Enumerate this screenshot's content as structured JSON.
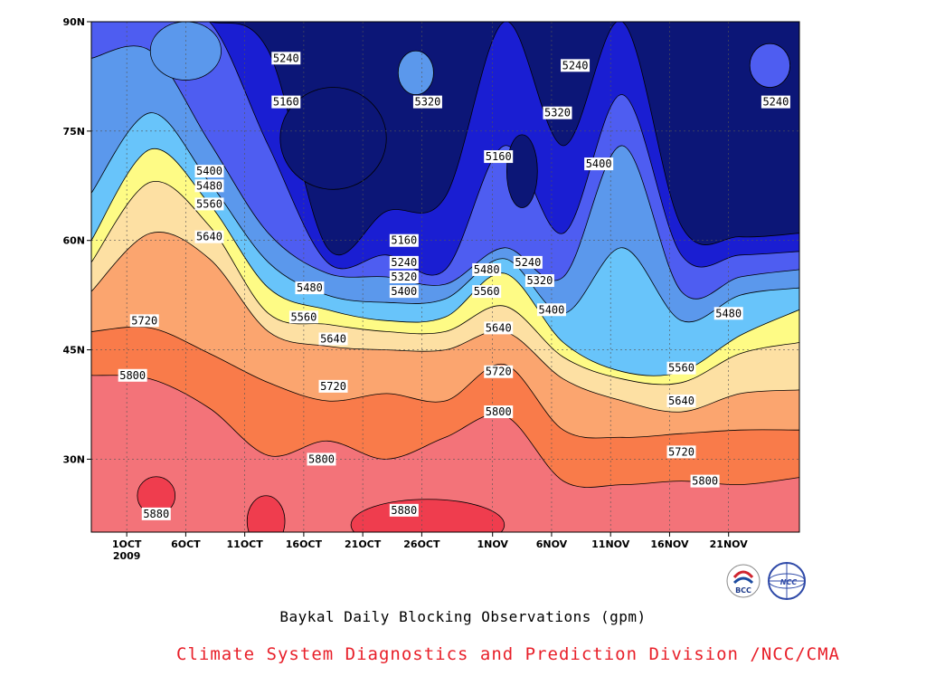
{
  "chart_data": {
    "type": "heatmap",
    "subtitle": "Baykal Daily Blocking Observations (gpm)",
    "credit": "Climate System Diagnostics and Prediction Division /NCC/CMA",
    "x_ticks": [
      "1OCT\n2009",
      "6OCT",
      "11OCT",
      "16OCT",
      "21OCT",
      "26OCT",
      "1NOV",
      "6NOV",
      "11NOV",
      "16NOV",
      "21NOV"
    ],
    "y_ticks": [
      "90N",
      "75N",
      "60N",
      "45N",
      "30N"
    ],
    "x_range_days_oct": [
      -2,
      58
    ],
    "y_range_lat": [
      20,
      90
    ],
    "grid": true,
    "contour_levels": [
      5160,
      5240,
      5320,
      5400,
      5480,
      5560,
      5640,
      5720,
      5800,
      5880
    ],
    "fill_colors": {
      "below_5160": "#0c1677",
      "5160_5240": "#1a1ed2",
      "5240_5320": "#4e5df1",
      "5320_5400": "#5b98ec",
      "5400_5480": "#68c4fa",
      "5480_5560": "#fefb85",
      "5560_5640": "#fde0a3",
      "5640_5720": "#fba56f",
      "5720_5800": "#f97b4a",
      "5800_5880": "#f37379",
      "above_5880": "#ef3d4e"
    },
    "boundary_lats": {
      "5880": [
        20.0,
        20.0,
        20.0,
        20.0,
        20.0,
        20.0,
        20.0,
        20.0,
        20.0,
        20.0,
        20.0,
        20.0,
        20.0
      ],
      "5800": [
        41.5,
        41.0,
        37.0,
        30.5,
        32.5,
        30.0,
        33.0,
        36.0,
        27.0,
        26.5,
        27.0,
        26.5,
        27.5
      ],
      "5720": [
        47.5,
        48.0,
        44.5,
        40.5,
        38.0,
        39.0,
        38.0,
        43.0,
        34.0,
        33.0,
        33.5,
        34.0,
        34.0
      ],
      "5640": [
        53.0,
        61.0,
        57.5,
        47.5,
        45.5,
        45.0,
        45.0,
        47.5,
        41.0,
        38.0,
        36.5,
        39.0,
        39.5
      ],
      "5560": [
        57.0,
        68.0,
        62.0,
        50.0,
        48.5,
        47.5,
        47.5,
        51.0,
        44.0,
        41.0,
        40.5,
        44.5,
        46.0
      ],
      "5480": [
        60.0,
        72.5,
        65.0,
        53.5,
        50.5,
        49.0,
        49.5,
        55.5,
        46.0,
        42.0,
        42.0,
        47.0,
        50.5
      ],
      "5400": [
        66.5,
        77.5,
        68.0,
        57.0,
        52.5,
        51.5,
        52.0,
        57.5,
        50.0,
        59.0,
        49.0,
        52.5,
        53.5
      ],
      "5320": [
        85.0,
        86.0,
        73.5,
        61.0,
        55.5,
        55.0,
        54.0,
        59.0,
        55.0,
        73.0,
        53.0,
        55.0,
        56.0
      ],
      "5240": [
        90.0,
        90.0,
        90.0,
        73.0,
        57.0,
        58.0,
        56.0,
        73.0,
        61.0,
        80.0,
        58.0,
        58.0,
        58.5
      ],
      "5160": [
        90.0,
        90.0,
        90.0,
        86.0,
        59.0,
        64.0,
        66.0,
        90.0,
        73.0,
        90.0,
        62.0,
        60.5,
        61.0
      ]
    },
    "contour_labels": [
      {
        "text": "5240",
        "day": 14.5,
        "lat": 85.0
      },
      {
        "text": "5160",
        "day": 14.5,
        "lat": 79.0
      },
      {
        "text": "5320",
        "day": 26.5,
        "lat": 79.0
      },
      {
        "text": "5400",
        "day": 8.0,
        "lat": 69.5
      },
      {
        "text": "5480",
        "day": 8.0,
        "lat": 67.5
      },
      {
        "text": "5560",
        "day": 8.0,
        "lat": 65.0
      },
      {
        "text": "5640",
        "day": 8.0,
        "lat": 60.5
      },
      {
        "text": "5160",
        "day": 24.5,
        "lat": 60.0
      },
      {
        "text": "5240",
        "day": 24.5,
        "lat": 57.0
      },
      {
        "text": "5320",
        "day": 24.5,
        "lat": 55.0
      },
      {
        "text": "5400",
        "day": 24.5,
        "lat": 53.0
      },
      {
        "text": "5480",
        "day": 16.5,
        "lat": 53.5
      },
      {
        "text": "5560",
        "day": 16.0,
        "lat": 49.5
      },
      {
        "text": "5640",
        "day": 18.5,
        "lat": 46.5
      },
      {
        "text": "5720",
        "day": 2.5,
        "lat": 49.0
      },
      {
        "text": "5800",
        "day": 1.5,
        "lat": 41.5
      },
      {
        "text": "5720",
        "day": 18.5,
        "lat": 40.0
      },
      {
        "text": "5800",
        "day": 17.5,
        "lat": 30.0
      },
      {
        "text": "5880",
        "day": 3.5,
        "lat": 22.5
      },
      {
        "text": "5880",
        "day": 24.5,
        "lat": 23.0
      },
      {
        "text": "5160",
        "day": 32.5,
        "lat": 71.5
      },
      {
        "text": "5480",
        "day": 31.5,
        "lat": 56.0
      },
      {
        "text": "5560",
        "day": 31.5,
        "lat": 53.0
      },
      {
        "text": "5640",
        "day": 32.5,
        "lat": 48.0
      },
      {
        "text": "5720",
        "day": 32.5,
        "lat": 42.0
      },
      {
        "text": "5800",
        "day": 32.5,
        "lat": 36.5
      },
      {
        "text": "5240",
        "day": 35.0,
        "lat": 57.0
      },
      {
        "text": "5320",
        "day": 36.0,
        "lat": 54.5
      },
      {
        "text": "5400",
        "day": 37.0,
        "lat": 50.5
      },
      {
        "text": "5240",
        "day": 39.0,
        "lat": 84.0
      },
      {
        "text": "5320",
        "day": 37.5,
        "lat": 77.5
      },
      {
        "text": "5400",
        "day": 41.0,
        "lat": 70.5
      },
      {
        "text": "5480",
        "day": 52.0,
        "lat": 50.0
      },
      {
        "text": "5560",
        "day": 48.0,
        "lat": 42.5
      },
      {
        "text": "5640",
        "day": 48.0,
        "lat": 38.0
      },
      {
        "text": "5720",
        "day": 48.0,
        "lat": 31.0
      },
      {
        "text": "5800",
        "day": 50.0,
        "lat": 27.0
      },
      {
        "text": "5240",
        "day": 56.0,
        "lat": 79.0
      }
    ]
  },
  "logos": {
    "bcc": "BCC",
    "ncc": "NCC"
  }
}
